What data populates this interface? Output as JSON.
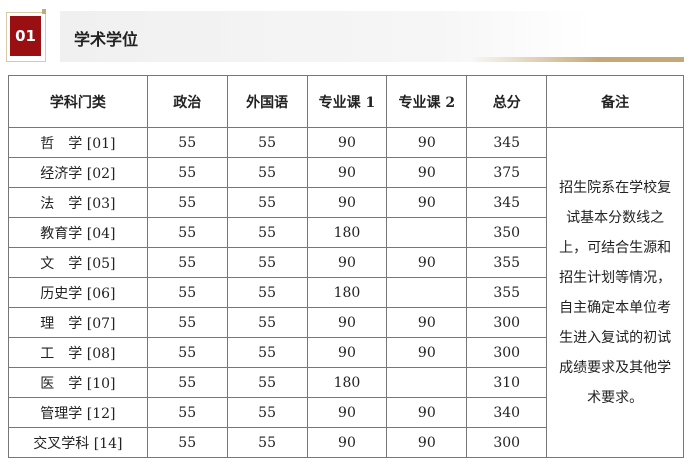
{
  "section": {
    "number": "01",
    "title": "学术学位"
  },
  "table": {
    "headers": [
      "学科门类",
      "政治",
      "外国语",
      "专业课 1",
      "专业课 2",
      "总分",
      "备注"
    ],
    "rows": [
      [
        "哲　学 [01]",
        "55",
        "55",
        "90",
        "90",
        "345"
      ],
      [
        "经济学 [02]",
        "55",
        "55",
        "90",
        "90",
        "375"
      ],
      [
        "法　学 [03]",
        "55",
        "55",
        "90",
        "90",
        "345"
      ],
      [
        "教育学 [04]",
        "55",
        "55",
        "180",
        "",
        "350"
      ],
      [
        "文　学 [05]",
        "55",
        "55",
        "90",
        "90",
        "355"
      ],
      [
        "历史学 [06]",
        "55",
        "55",
        "180",
        "",
        "355"
      ],
      [
        "理　学 [07]",
        "55",
        "55",
        "90",
        "90",
        "300"
      ],
      [
        "工　学 [08]",
        "55",
        "55",
        "90",
        "90",
        "300"
      ],
      [
        "医　学 [10]",
        "55",
        "55",
        "180",
        "",
        "310"
      ],
      [
        "管理学 [12]",
        "55",
        "55",
        "90",
        "90",
        "340"
      ],
      [
        "交叉学科 [14]",
        "55",
        "55",
        "90",
        "90",
        "300"
      ]
    ],
    "note": "招生院系在学校复试基本分数线之上，可结合生源和招生计划等情况，自主确定本单位考生进入复试的初试成绩要求及其他学术要求。"
  },
  "colors": {
    "accent": "#9a0f12",
    "gold": "#c4a878"
  }
}
